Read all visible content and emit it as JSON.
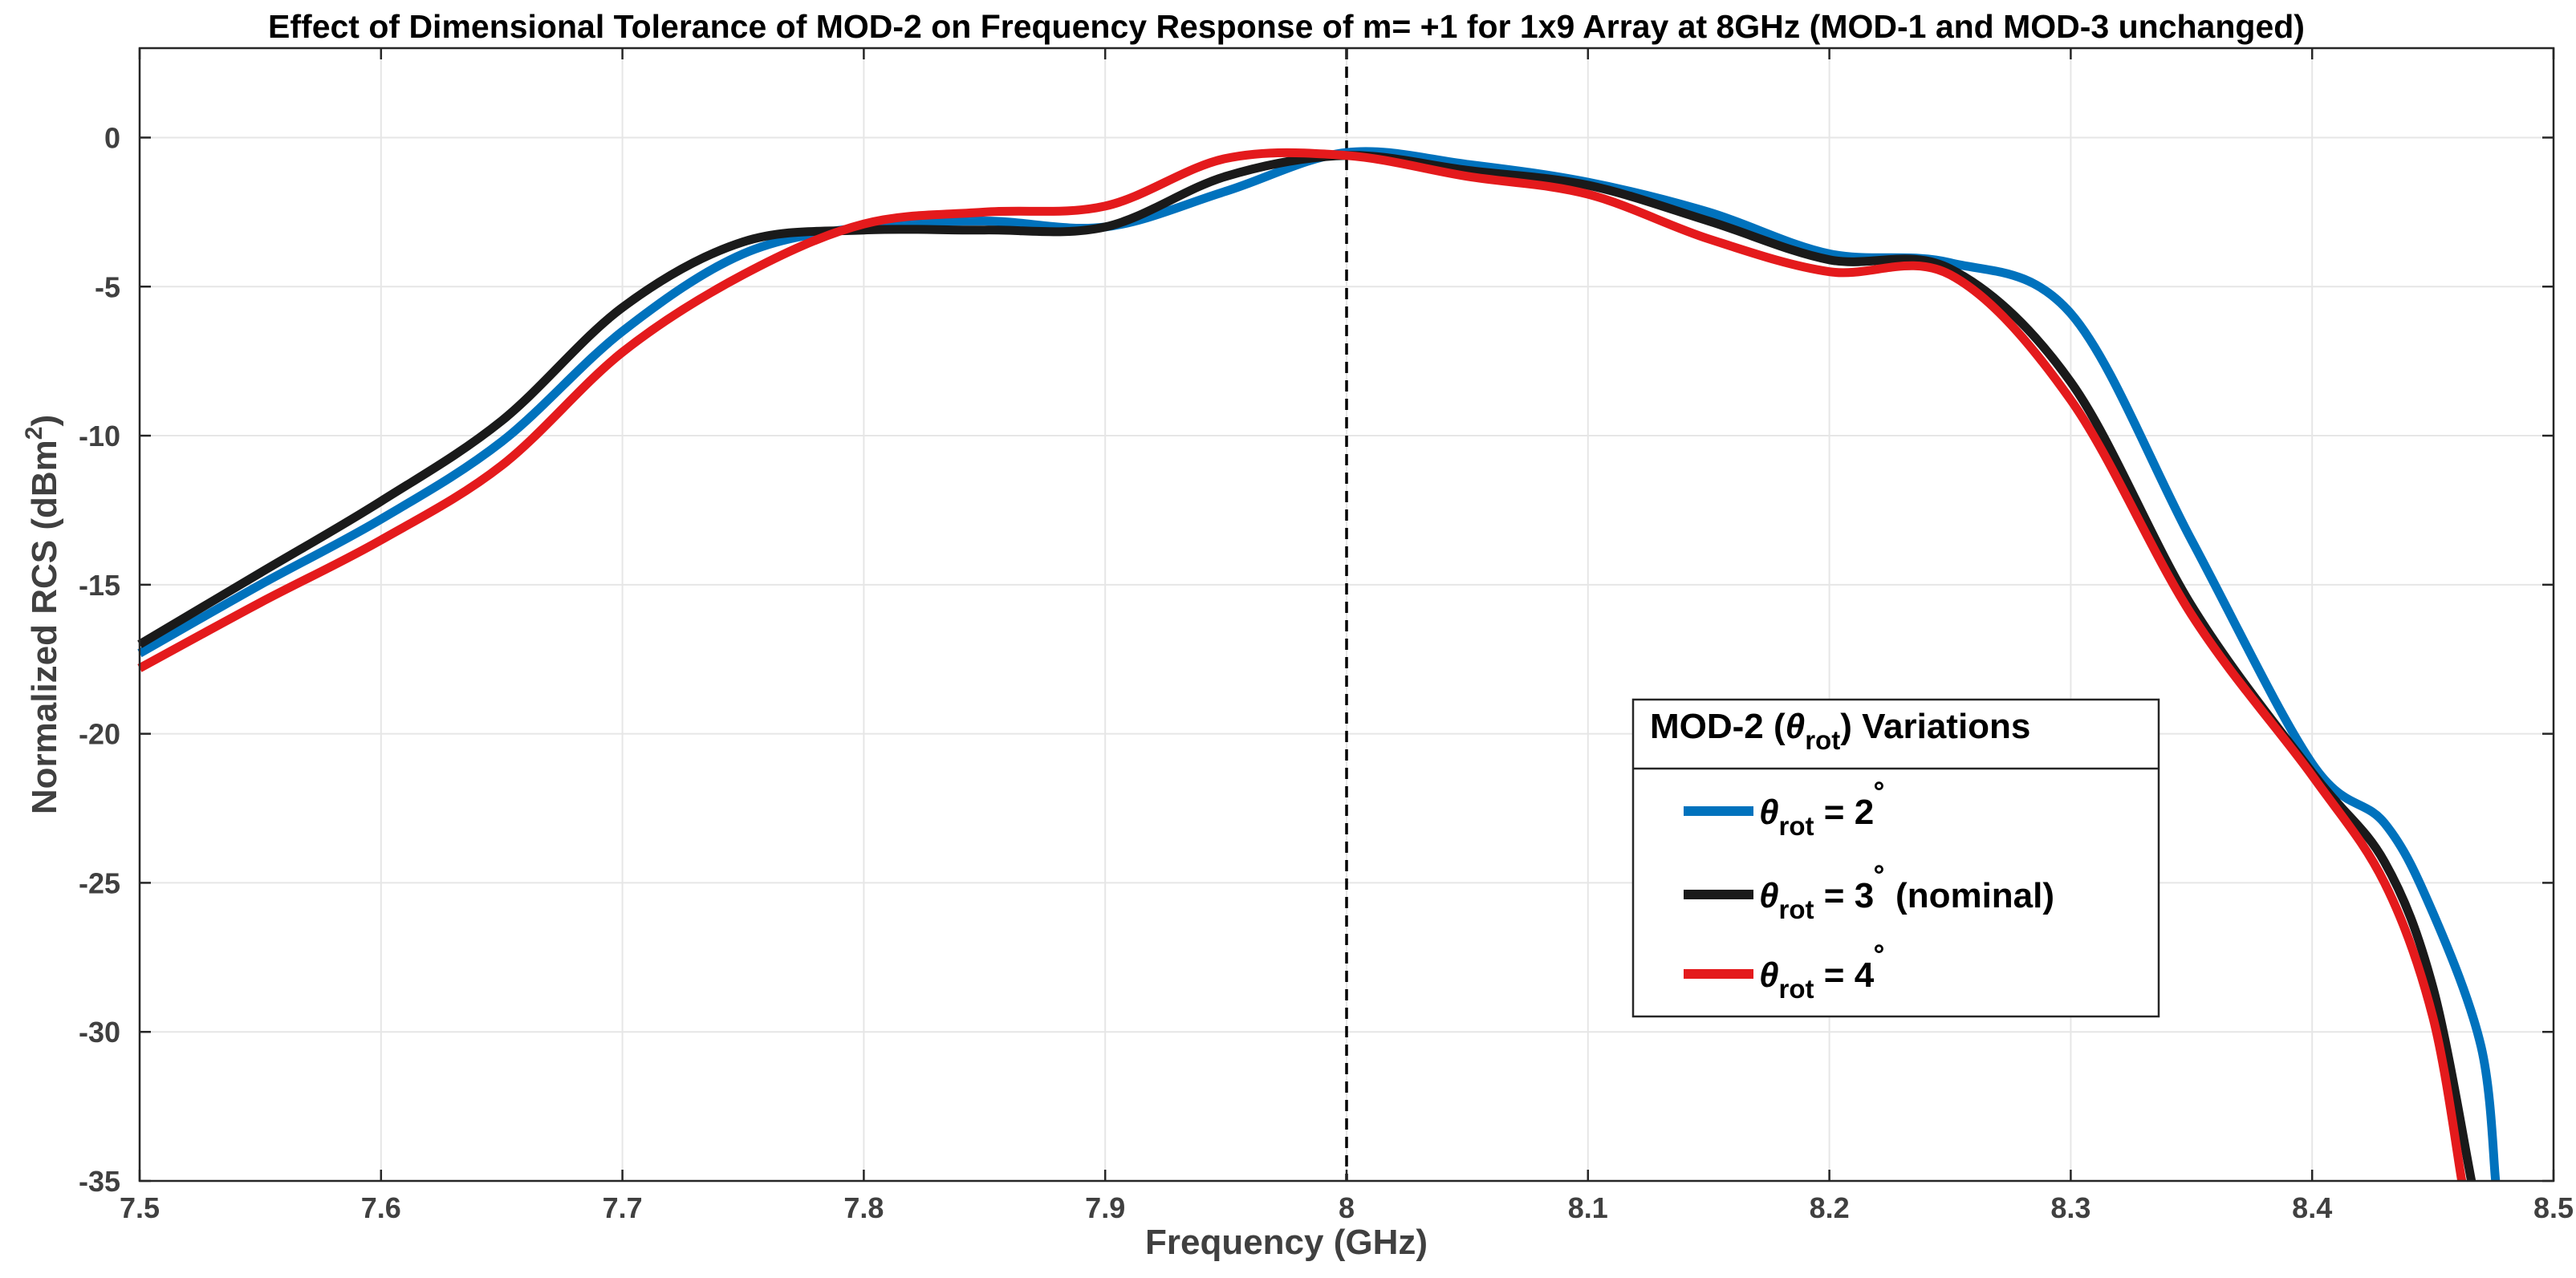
{
  "chart_data": {
    "type": "line",
    "title": "Effect of Dimensional Tolerance of MOD-2 on Frequency Response of m= +1 for 1x9 Array at 8GHz (MOD-1 and MOD-3 unchanged)",
    "xlabel": "Frequency (GHz)",
    "ylabel": {
      "main": "Normalized RCS (dBm",
      "sup": "2",
      "tail": ")"
    },
    "xlim": [
      7.5,
      8.5
    ],
    "ylim": [
      -35,
      3
    ],
    "x_ticks": [
      7.5,
      7.6,
      7.7,
      7.8,
      7.9,
      8.0,
      8.1,
      8.2,
      8.3,
      8.4,
      8.5
    ],
    "x_tick_labels": [
      "7.5",
      "7.6",
      "7.7",
      "7.8",
      "7.9",
      "8",
      "8.1",
      "8.2",
      "8.3",
      "8.4",
      "8.5"
    ],
    "y_ticks": [
      0,
      -5,
      -10,
      -15,
      -20,
      -25,
      -30,
      -35
    ],
    "y_tick_labels": [
      "0",
      "-5",
      "-10",
      "-15",
      "-20",
      "-25",
      "-30",
      "-35"
    ],
    "grid": true,
    "reference_line": {
      "x": 8.0,
      "style": "dashed"
    },
    "legend": {
      "title": "MOD-2 (θrot) Variations",
      "title_parts": {
        "prefix": "MOD-2 (",
        "symbol": "θ",
        "sub": "rot",
        "suffix": ") Variations"
      },
      "location": "lower-right",
      "entries": [
        {
          "symbol": "θ",
          "sub": "rot",
          "text": " = 2",
          "deg": "˚",
          "tail": ""
        },
        {
          "symbol": "θ",
          "sub": "rot",
          "text": " = 3",
          "deg": "˚",
          "tail": " (nominal)"
        },
        {
          "symbol": "θ",
          "sub": "rot",
          "text": " = 4",
          "deg": "˚",
          "tail": ""
        }
      ]
    },
    "series": [
      {
        "name": "θrot = 2°",
        "color": "#0072BD",
        "x": [
          7.5,
          7.55,
          7.6,
          7.65,
          7.7,
          7.75,
          7.8,
          7.85,
          7.9,
          7.95,
          8.0,
          8.05,
          8.1,
          8.15,
          8.2,
          8.25,
          8.3,
          8.35,
          8.4,
          8.43,
          8.45,
          8.47,
          8.476
        ],
        "y": [
          -17.3,
          -15.0,
          -12.8,
          -10.2,
          -6.5,
          -3.9,
          -3.0,
          -2.8,
          -3.0,
          -1.8,
          -0.5,
          -0.9,
          -1.5,
          -2.5,
          -3.9,
          -4.2,
          -5.9,
          -13.5,
          -21.0,
          -23.0,
          -26.0,
          -30.5,
          -35.0
        ]
      },
      {
        "name": "θrot = 3° (nominal)",
        "color": "#1A1A1A",
        "x": [
          7.5,
          7.55,
          7.6,
          7.65,
          7.7,
          7.75,
          7.8,
          7.85,
          7.9,
          7.95,
          8.0,
          8.05,
          8.1,
          8.15,
          8.2,
          8.25,
          8.3,
          8.35,
          8.4,
          8.43,
          8.45,
          8.466
        ],
        "y": [
          -17.0,
          -14.6,
          -12.2,
          -9.5,
          -5.7,
          -3.5,
          -3.1,
          -3.1,
          -3.0,
          -1.3,
          -0.6,
          -1.1,
          -1.6,
          -2.8,
          -4.1,
          -4.4,
          -8.2,
          -15.7,
          -21.3,
          -24.3,
          -28.5,
          -35.0
        ]
      },
      {
        "name": "θrot = 4°",
        "color": "#E41A1C",
        "x": [
          7.5,
          7.55,
          7.6,
          7.65,
          7.7,
          7.75,
          7.8,
          7.85,
          7.9,
          7.95,
          8.0,
          8.05,
          8.1,
          8.15,
          8.2,
          8.25,
          8.3,
          8.35,
          8.4,
          8.43,
          8.45,
          8.462
        ],
        "y": [
          -17.8,
          -15.6,
          -13.5,
          -11.0,
          -7.2,
          -4.6,
          -2.9,
          -2.5,
          -2.3,
          -0.7,
          -0.6,
          -1.3,
          -1.9,
          -3.4,
          -4.5,
          -4.6,
          -8.8,
          -16.0,
          -21.4,
          -25.0,
          -29.5,
          -35.0
        ]
      }
    ]
  }
}
